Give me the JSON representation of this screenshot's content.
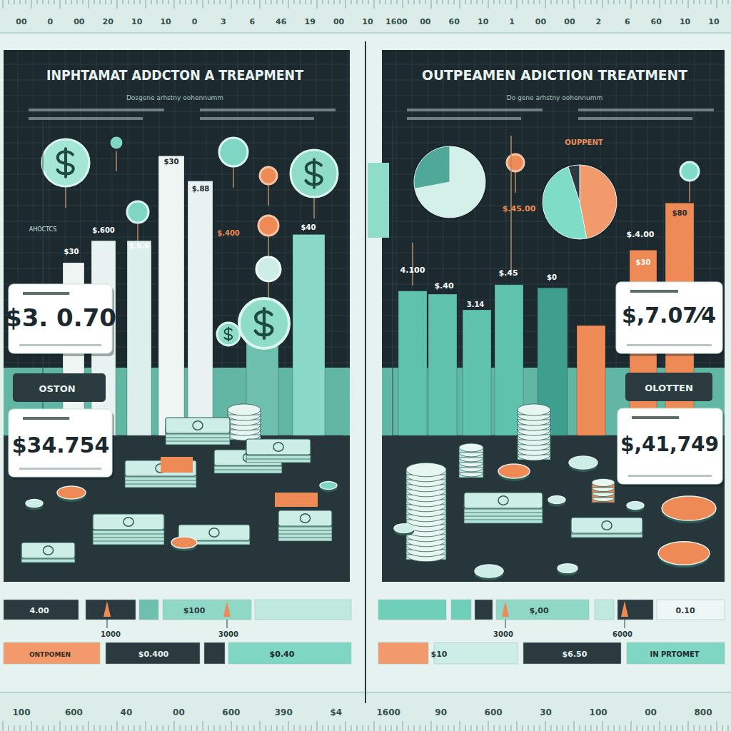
{
  "rulers": {
    "top": [
      "00",
      "0",
      "00",
      "20",
      "10",
      "10",
      "0",
      "3",
      "6",
      "46",
      "19",
      "00",
      "10",
      "1600",
      "00",
      "60",
      "10",
      "1",
      "00",
      "00",
      "2",
      "6",
      "60",
      "10",
      "10"
    ],
    "bottom": [
      "100",
      "600",
      "40",
      "00",
      "600",
      "390",
      "$4",
      "1600",
      "90",
      "600",
      "30",
      "100",
      "00",
      "800"
    ]
  },
  "chart_data": [
    {
      "type": "bar",
      "title": "INPHTAMAT ADDCTON A TREAPMENT",
      "subtitle": "Dosgene arhstny oohennumm",
      "categories": [
        null,
        null,
        null,
        null,
        null,
        null,
        null
      ],
      "values": [
        55,
        62,
        62,
        89,
        81,
        41,
        64
      ],
      "colors": [
        "#eef5f3",
        "#e8f2f0",
        "#dcefea",
        "#eef5f3",
        "#e8f2f0",
        "#6fbfae",
        "#8ad8c8"
      ],
      "ylim": [
        0,
        100
      ],
      "tick_labels": false,
      "annotations": [
        "$3. 0.70",
        "$34.754",
        "OSTON",
        "$30",
        "$.600",
        "$.6.6",
        "$30",
        "$.88",
        "$.400",
        "$40",
        "AHOCTCS",
        "4.00",
        "$100",
        "1000",
        "3000",
        "$0.400",
        "$0.40",
        "ONTPOMEN"
      ]
    },
    {
      "type": "pie",
      "values": [
        72,
        28
      ],
      "colors": [
        "#d3f1e9",
        "#4fa898"
      ]
    },
    {
      "type": "bar",
      "title": "OUTPEAMEN ADICTION TREATMENT",
      "subtitle": "Do gene arhstny oohennumm",
      "categories": [
        null,
        null,
        null,
        null,
        null,
        null,
        null,
        null
      ],
      "values": [
        46,
        45,
        40,
        48,
        47,
        35,
        59,
        74
      ],
      "colors": [
        "#5fc2ad",
        "#5fc2ad",
        "#5fc2ad",
        "#5fc2ad",
        "#3f9f8e",
        "#ee8a55",
        "#ee8a55",
        "#ee8a55"
      ],
      "ylim": [
        0,
        100
      ],
      "tick_labels": false,
      "annotations": [
        "$,7.07⁄4",
        "$,41,749",
        "OLOTTEN",
        "4.100",
        "$.40",
        "3.14",
        "$.45",
        "$0",
        "$30",
        "$.4.00",
        "$80",
        "OUPPENT",
        "$.45.00",
        "$,00",
        "0.10",
        "3000",
        "6000",
        "$10",
        "$6.50",
        "IN PRTOMET"
      ]
    },
    {
      "type": "pie",
      "values": [
        47,
        48,
        5
      ],
      "colors": [
        "#f29a6b",
        "#7fdcc6",
        "#2b3a3e"
      ]
    }
  ]
}
